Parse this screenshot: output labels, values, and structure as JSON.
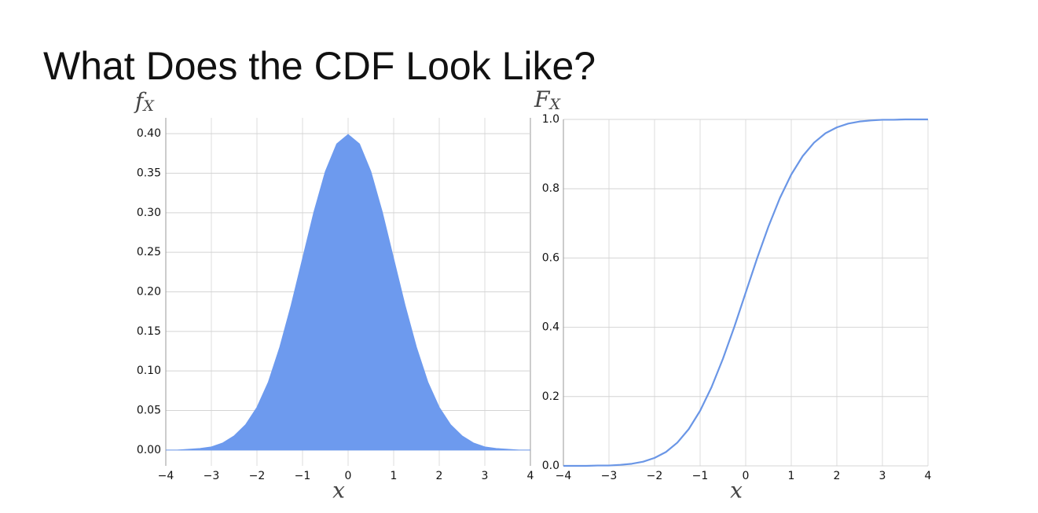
{
  "title": "What Does the CDF Look Like?",
  "chart_data": [
    {
      "type": "area",
      "ylabel": [
        "f",
        "X"
      ],
      "xlabel": "x",
      "x": [
        -4,
        -3.75,
        -3.5,
        -3.25,
        -3,
        -2.75,
        -2.5,
        -2.25,
        -2,
        -1.75,
        -1.5,
        -1.25,
        -1,
        -0.75,
        -0.5,
        -0.25,
        0,
        0.25,
        0.5,
        0.75,
        1,
        1.25,
        1.5,
        1.75,
        2,
        2.25,
        2.5,
        2.75,
        3,
        3.25,
        3.5,
        3.75,
        4
      ],
      "series": [
        {
          "color": "#6d9aee",
          "values": [
            0,
            0,
            0.001,
            0.002,
            0.004,
            0.009,
            0.018,
            0.032,
            0.054,
            0.086,
            0.13,
            0.183,
            0.242,
            0.301,
            0.352,
            0.387,
            0.399,
            0.387,
            0.352,
            0.301,
            0.242,
            0.183,
            0.13,
            0.086,
            0.054,
            0.032,
            0.018,
            0.009,
            0.004,
            0.002,
            0.001,
            0,
            0
          ]
        }
      ],
      "xlim": [
        -4,
        4
      ],
      "xticks": [
        {
          "value": -4,
          "label": "−4"
        },
        {
          "value": -3,
          "label": "−3"
        },
        {
          "value": -2,
          "label": "−2"
        },
        {
          "value": -1,
          "label": "−1"
        },
        0,
        1,
        2,
        3,
        4
      ],
      "ylim": [
        -0.02,
        0.42
      ],
      "yticks": [
        {
          "value": 0,
          "label": "0.00"
        },
        0.05,
        {
          "value": 0.1,
          "label": "0.10"
        },
        0.15,
        {
          "value": 0.2,
          "label": "0.20"
        },
        0.25,
        {
          "value": 0.3,
          "label": "0.30"
        },
        0.35,
        {
          "value": 0.4,
          "label": "0.40"
        }
      ],
      "grid": true
    },
    {
      "type": "line",
      "ylabel": [
        "F",
        "X"
      ],
      "xlabel": "x",
      "x": [
        -4,
        -3.75,
        -3.5,
        -3.25,
        -3,
        -2.75,
        -2.5,
        -2.25,
        -2,
        -1.75,
        -1.5,
        -1.25,
        -1,
        -0.75,
        -0.5,
        -0.25,
        0,
        0.25,
        0.5,
        0.75,
        1,
        1.25,
        1.5,
        1.75,
        2,
        2.25,
        2.5,
        2.75,
        3,
        3.25,
        3.5,
        3.75,
        4
      ],
      "series": [
        {
          "color": "#6a96e6",
          "values": [
            0,
            0,
            0,
            0.001,
            0.001,
            0.003,
            0.006,
            0.012,
            0.023,
            0.04,
            0.067,
            0.106,
            0.159,
            0.227,
            0.309,
            0.401,
            0.5,
            0.599,
            0.691,
            0.773,
            0.841,
            0.894,
            0.933,
            0.96,
            0.977,
            0.988,
            0.994,
            0.997,
            0.999,
            0.999,
            1,
            1,
            1
          ]
        }
      ],
      "xlim": [
        -4,
        4
      ],
      "xticks": [
        {
          "value": -4,
          "label": "−4"
        },
        {
          "value": -3,
          "label": "−3"
        },
        {
          "value": -2,
          "label": "−2"
        },
        {
          "value": -1,
          "label": "−1"
        },
        0,
        1,
        2,
        3,
        4
      ],
      "ylim": [
        0,
        1
      ],
      "yticks": [
        {
          "value": 0,
          "label": "0.0"
        },
        0.2,
        0.4,
        0.6,
        0.8,
        {
          "value": 1,
          "label": "1.0"
        }
      ],
      "grid": true
    }
  ]
}
